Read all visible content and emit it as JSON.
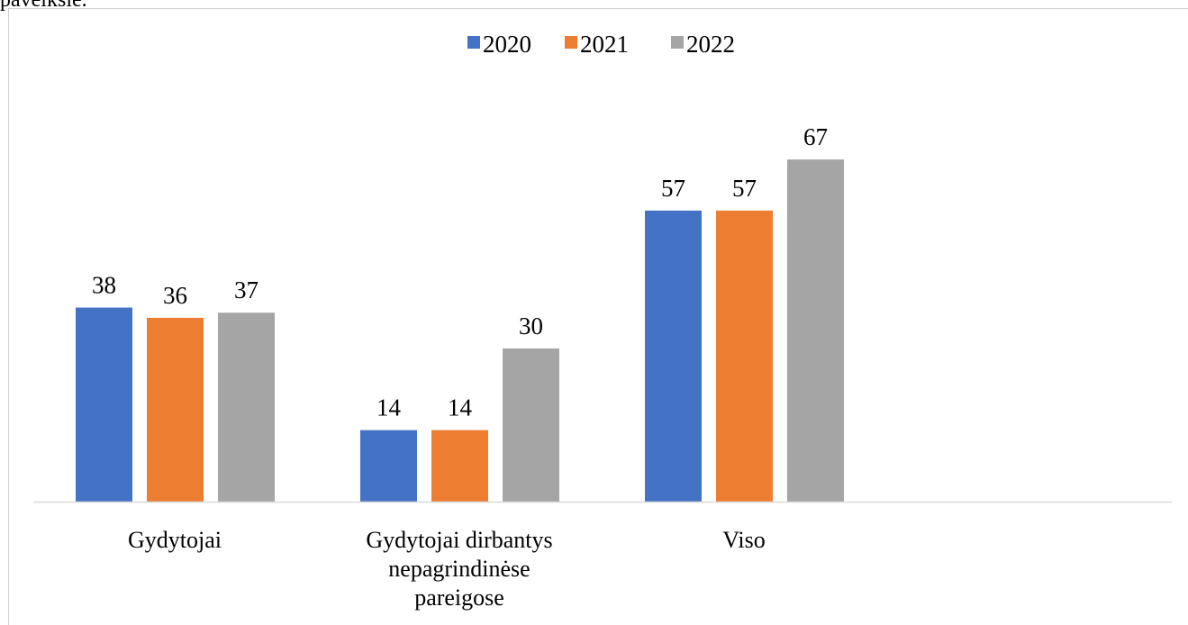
{
  "page": {
    "top_text": "paveiksle."
  },
  "chart_data": {
    "type": "bar",
    "categories": [
      "Gydytojai",
      "Gydytojai dirbantys nepagrindinėse pareigose",
      "Viso"
    ],
    "category_lines": [
      [
        "Gydytojai"
      ],
      [
        "Gydytojai dirbantys",
        "nepagrindinėse",
        "pareigose"
      ],
      [
        "Viso"
      ]
    ],
    "series": [
      {
        "name": "2020",
        "color": "#4472C4",
        "values": [
          38,
          14,
          57
        ]
      },
      {
        "name": "2021",
        "color": "#ED7D31",
        "values": [
          36,
          14,
          57
        ]
      },
      {
        "name": "2022",
        "color": "#A5A5A5",
        "values": [
          37,
          30,
          67
        ]
      }
    ],
    "title": "",
    "xlabel": "",
    "ylabel": "",
    "ylim": [
      0,
      70
    ],
    "grid": false,
    "legend": "top-center",
    "data_labels": true,
    "axis_color": "#D9D9D9"
  }
}
